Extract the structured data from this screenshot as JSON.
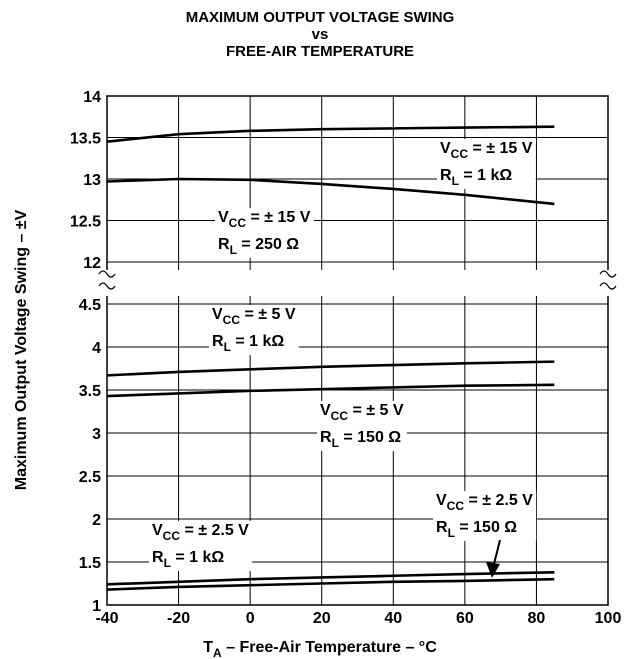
{
  "chart_data": {
    "type": "line",
    "title": [
      "MAXIMUM OUTPUT VOLTAGE SWING",
      "vs",
      "FREE-AIR TEMPERATURE"
    ],
    "y_label": "Maximum Output Voltage Swing – ±V",
    "x_label": {
      "text": "T",
      "sub": "A",
      "rest": " – Free-Air Temperature – °C"
    },
    "x": [
      -40,
      -20,
      0,
      20,
      40,
      60,
      85
    ],
    "xlim": [
      -40,
      100
    ],
    "xticks": [
      -40,
      -20,
      0,
      20,
      40,
      60,
      80,
      100
    ],
    "ylim": [
      1,
      14
    ],
    "ybreak": [
      4.5,
      12
    ],
    "yticks": [
      1,
      1.5,
      2,
      2.5,
      3,
      3.5,
      4,
      4.5,
      12,
      12.5,
      13,
      13.5,
      14
    ],
    "grid": true,
    "series": [
      {
        "color": "#000000",
        "values": [
          13.45,
          13.54,
          13.58,
          13.6,
          13.61,
          13.62,
          13.63
        ],
        "label": [
          {
            "text": "V",
            "sub": "CC",
            "rest": " = ± 15 V"
          },
          {
            "text": "R",
            "sub": "L",
            "rest": " = 1 kΩ"
          }
        ]
      },
      {
        "color": "#000000",
        "values": [
          12.97,
          13.0,
          12.99,
          12.94,
          12.88,
          12.81,
          12.7
        ],
        "label": [
          {
            "text": "V",
            "sub": "CC",
            "rest": " = ± 15 V"
          },
          {
            "text": "R",
            "sub": "L",
            "rest": " = 250 Ω"
          }
        ]
      },
      {
        "color": "#000000",
        "values": [
          3.67,
          3.71,
          3.74,
          3.77,
          3.79,
          3.81,
          3.83
        ],
        "label": [
          {
            "text": "V",
            "sub": "CC",
            "rest": " = ± 5 V"
          },
          {
            "text": "R",
            "sub": "L",
            "rest": " = 1 kΩ"
          }
        ]
      },
      {
        "color": "#000000",
        "values": [
          3.43,
          3.46,
          3.49,
          3.51,
          3.53,
          3.55,
          3.56
        ],
        "label": [
          {
            "text": "V",
            "sub": "CC",
            "rest": " = ± 5 V"
          },
          {
            "text": "R",
            "sub": "L",
            "rest": " = 150 Ω"
          }
        ]
      },
      {
        "color": "#000000",
        "values": [
          1.24,
          1.27,
          1.3,
          1.32,
          1.34,
          1.36,
          1.38
        ],
        "label": [
          {
            "text": "V",
            "sub": "CC",
            "rest": " = ± 2.5 V"
          },
          {
            "text": "R",
            "sub": "L",
            "rest": " = 1 kΩ"
          }
        ]
      },
      {
        "color": "#000000",
        "values": [
          1.18,
          1.21,
          1.23,
          1.25,
          1.27,
          1.28,
          1.3
        ],
        "label": [
          {
            "text": "V",
            "sub": "CC",
            "rest": " = ± 2.5 V"
          },
          {
            "text": "R",
            "sub": "L",
            "rest": " = 150 Ω"
          }
        ]
      }
    ]
  }
}
